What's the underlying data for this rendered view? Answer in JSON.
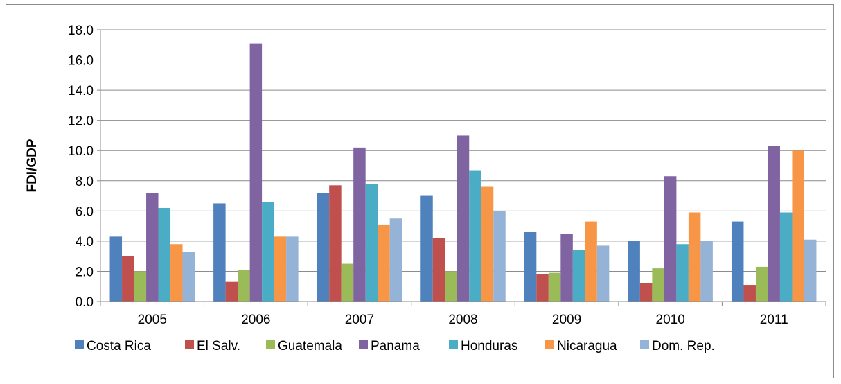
{
  "chart_data": {
    "type": "bar",
    "title": "",
    "xlabel": "",
    "ylabel": "FDI/GDP",
    "ylim": [
      0,
      18
    ],
    "yticks": [
      "0.0",
      "2.0",
      "4.0",
      "6.0",
      "8.0",
      "10.0",
      "12.0",
      "14.0",
      "16.0",
      "18.0"
    ],
    "grid": true,
    "legend_position": "bottom",
    "categories": [
      "2005",
      "2006",
      "2007",
      "2008",
      "2009",
      "2010",
      "2011"
    ],
    "series": [
      {
        "name": "Costa Rica",
        "color": "#4f81bd",
        "values": [
          4.3,
          6.5,
          7.2,
          7.0,
          4.6,
          4.0,
          5.3
        ]
      },
      {
        "name": "El Salv.",
        "color": "#c0504d",
        "values": [
          3.0,
          1.3,
          7.7,
          4.2,
          1.8,
          1.2,
          1.1
        ]
      },
      {
        "name": "Guatemala",
        "color": "#9bbb59",
        "values": [
          2.0,
          2.1,
          2.5,
          2.0,
          1.9,
          2.2,
          2.3
        ]
      },
      {
        "name": "Panama",
        "color": "#8064a2",
        "values": [
          7.2,
          17.1,
          10.2,
          11.0,
          4.5,
          8.3,
          10.3
        ]
      },
      {
        "name": "Honduras",
        "color": "#4bacc6",
        "values": [
          6.2,
          6.6,
          7.8,
          8.7,
          3.4,
          3.8,
          5.9
        ]
      },
      {
        "name": "Nicaragua",
        "color": "#f79646",
        "values": [
          3.8,
          4.3,
          5.1,
          7.6,
          5.3,
          5.9,
          10.0
        ]
      },
      {
        "name": "Dom. Rep.",
        "color": "#95b3d7",
        "values": [
          3.3,
          4.3,
          5.5,
          6.0,
          3.7,
          4.0,
          4.1
        ]
      }
    ]
  }
}
